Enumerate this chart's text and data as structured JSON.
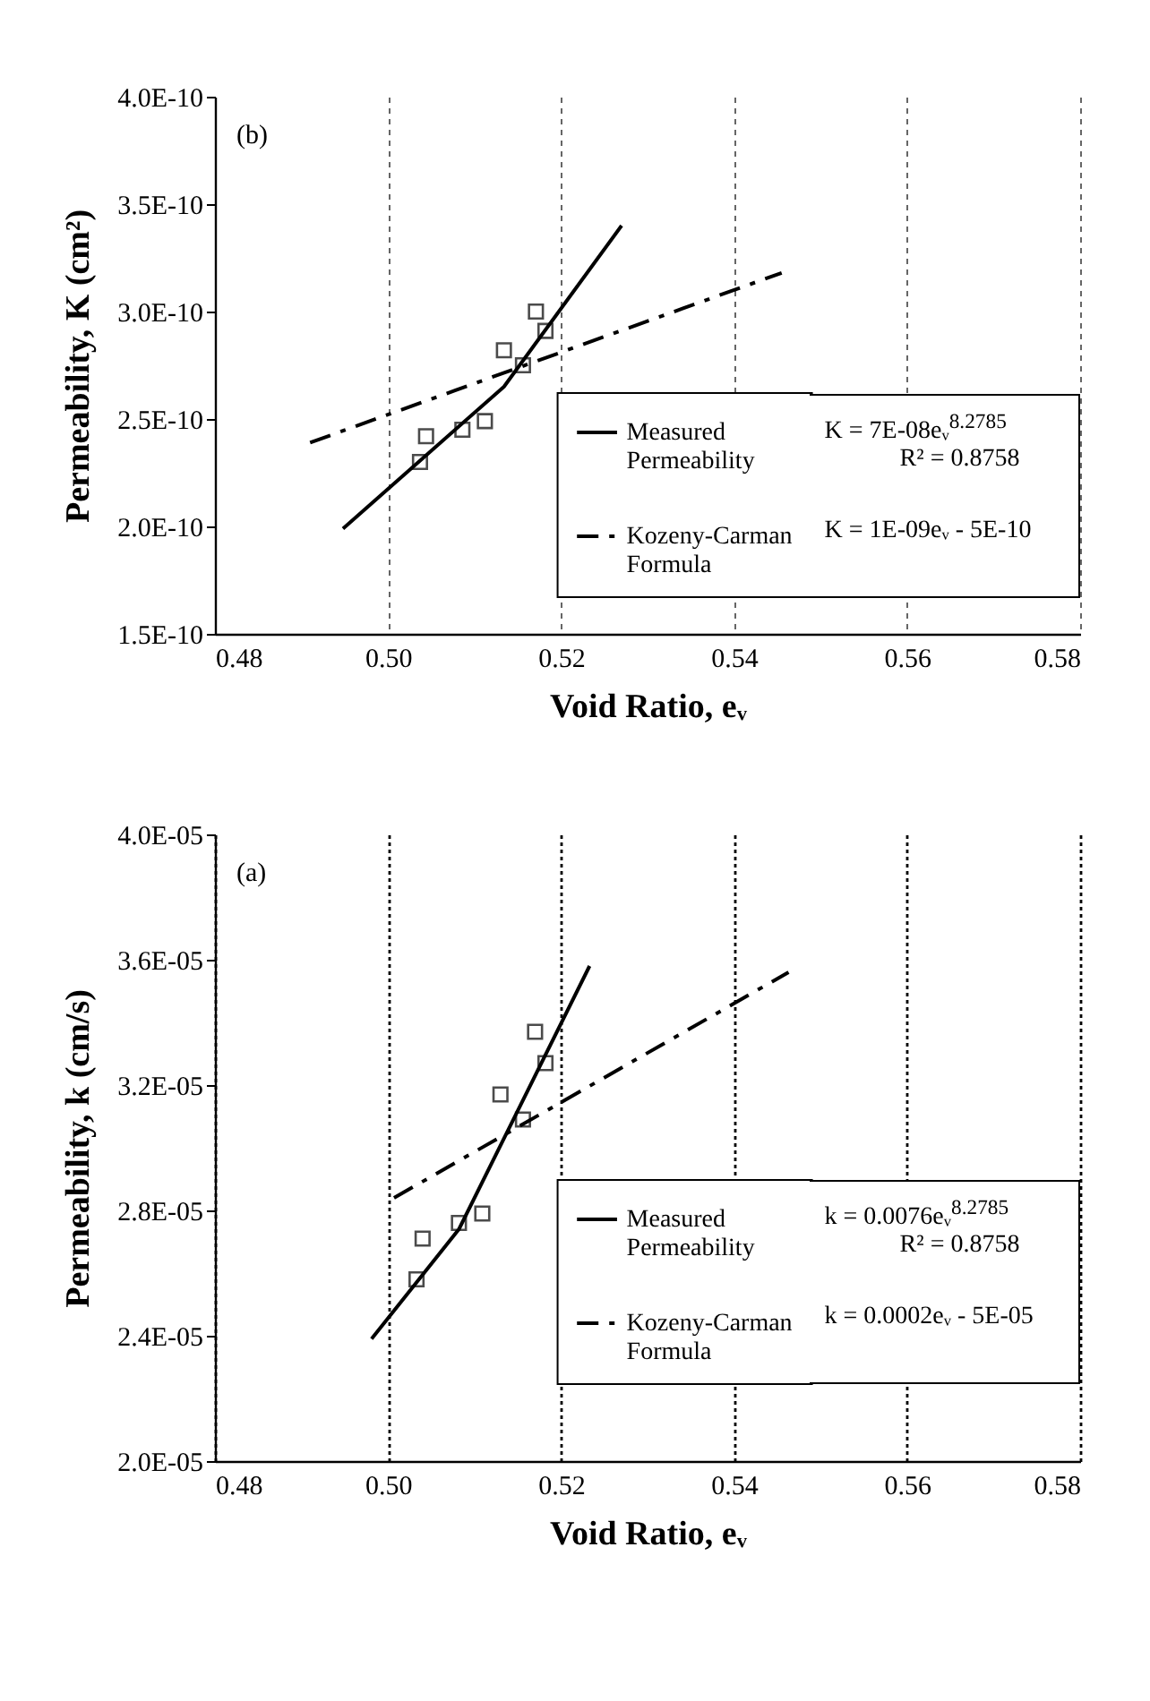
{
  "chart_data": [
    {
      "type": "scatter",
      "xlabel": "Void Ratio, eᵥ",
      "ylabel": "Permeability, K (cm²)",
      "annotations": [
        "(b)",
        "K = 7E-08eᵥ$^{8.2785}$",
        "R² = 0.8758",
        "K = 1E-09eᵥ - 5E-10"
      ],
      "xlim": [
        0.48,
        0.58
      ],
      "xticks": [
        {
          "value": 0.48,
          "label": "0.48"
        },
        {
          "value": 0.5,
          "label": "0.50"
        },
        {
          "value": 0.52,
          "label": "0.52"
        },
        {
          "value": 0.54,
          "label": "0.54"
        },
        {
          "value": 0.56,
          "label": "0.56"
        },
        {
          "value": 0.58,
          "label": "0.58"
        }
      ],
      "ylim": [
        1.5e-10,
        4e-10
      ],
      "yticks": [
        {
          "value": 1.5e-10,
          "label": "1.5E-10"
        },
        {
          "value": 2e-10,
          "label": "2.0E-10"
        },
        {
          "value": 2.5e-10,
          "label": "2.5E-10"
        },
        {
          "value": 3e-10,
          "label": "3.0E-10"
        },
        {
          "value": 3.5e-10,
          "label": "3.5E-10"
        },
        {
          "value": 4e-10,
          "label": "4.0E-10"
        }
      ],
      "grid": "x",
      "legend": "bottom right",
      "series": [
        {
          "color": "#000000",
          "marker": "square",
          "x": [
            0.5037,
            0.5044,
            0.5086,
            0.5112,
            0.5134,
            0.5156,
            0.5171,
            0.5182
          ],
          "values": [
            2.3e-10,
            2.42e-10,
            2.45e-10,
            2.49e-10,
            2.82e-10,
            2.75e-10,
            3e-10,
            2.91e-10
          ]
        },
        {
          "type": "line",
          "name": "Measured Permeability",
          "color": "#000000",
          "line_style": "solid",
          "x": [
            0.4948,
            0.5134,
            0.527
          ],
          "values": [
            1.99e-10,
            2.65e-10,
            3.4e-10
          ]
        },
        {
          "type": "line",
          "name": "Kozeny-Carman Formula",
          "color": "#000000",
          "line_style": "dashed",
          "x": [
            0.491,
            0.5455
          ],
          "values": [
            2.39e-10,
            3.18e-10
          ]
        }
      ]
    },
    {
      "type": "scatter",
      "xlabel": "Void Ratio, eᵥ",
      "ylabel": "Permeability, k (cm/s)",
      "annotations": [
        "(a)",
        "k = 0.0076eᵥ$^{8.2785}$",
        "R² = 0.8758",
        "k = 0.0002eᵥ - 5E-05"
      ],
      "xlim": [
        0.48,
        0.58
      ],
      "xticks": [
        {
          "value": 0.48,
          "label": "0.48"
        },
        {
          "value": 0.5,
          "label": "0.50"
        },
        {
          "value": 0.52,
          "label": "0.52"
        },
        {
          "value": 0.54,
          "label": "0.54"
        },
        {
          "value": 0.56,
          "label": "0.56"
        },
        {
          "value": 0.58,
          "label": "0.58"
        }
      ],
      "ylim": [
        2e-05,
        4e-05
      ],
      "yticks": [
        {
          "value": 2e-05,
          "label": "2.0E-05"
        },
        {
          "value": 2.4e-05,
          "label": "2.4E-05"
        },
        {
          "value": 2.8e-05,
          "label": "2.8E-05"
        },
        {
          "value": 3.2e-05,
          "label": "3.2E-05"
        },
        {
          "value": 3.6e-05,
          "label": "3.6E-05"
        },
        {
          "value": 4e-05,
          "label": "4.0E-05"
        }
      ],
      "grid": "x",
      "legend": "bottom right",
      "series": [
        {
          "color": "#000000",
          "marker": "square",
          "x": [
            0.5033,
            0.504,
            0.5082,
            0.5109,
            0.513,
            0.5156,
            0.517,
            0.5182
          ],
          "values": [
            2.58e-05,
            2.71e-05,
            2.76e-05,
            2.79e-05,
            3.17e-05,
            3.09e-05,
            3.37e-05,
            3.27e-05
          ]
        },
        {
          "type": "line",
          "name": "Measured Permeability",
          "color": "#000000",
          "line_style": "solid",
          "x": [
            0.4981,
            0.5082,
            0.5233
          ],
          "values": [
            2.39e-05,
            2.74e-05,
            3.58e-05
          ]
        },
        {
          "type": "line",
          "name": "Kozeny-Carman Formula",
          "color": "#000000",
          "line_style": "dashed",
          "x": [
            0.5007,
            0.5463
          ],
          "values": [
            2.84e-05,
            3.56e-05
          ]
        }
      ]
    }
  ]
}
